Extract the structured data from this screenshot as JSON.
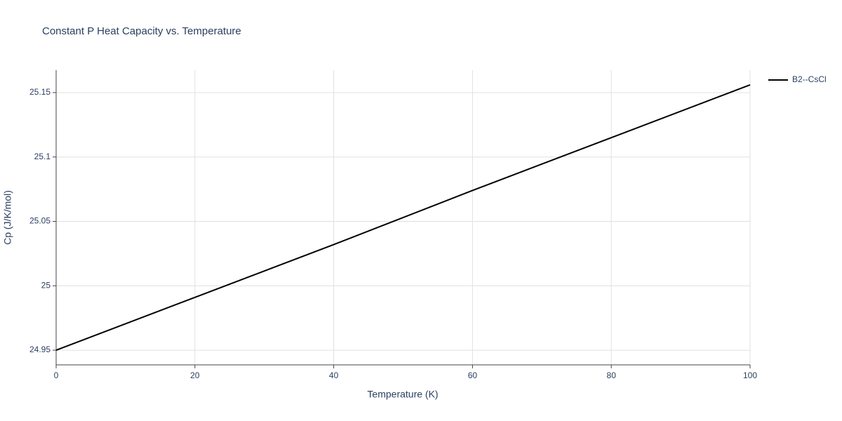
{
  "chart_data": {
    "type": "line",
    "title": "Constant P Heat Capacity vs. Temperature",
    "x_label": "Temperature (K)",
    "y_label": "Cp (J/K/mol)",
    "x": [
      0,
      20,
      40,
      60,
      80,
      100
    ],
    "series": [
      {
        "name": "B2--CsCl",
        "color": "#000000",
        "values": [
          24.95,
          24.991,
          25.032,
          25.074,
          25.115,
          25.156
        ]
      }
    ],
    "xlim": [
      0,
      100
    ],
    "xticks": [
      0,
      20,
      40,
      60,
      80,
      100
    ],
    "ylim": [
      24.9386,
      25.1674
    ],
    "yticks": [
      24.95,
      25,
      25.05,
      25.1,
      25.15
    ],
    "grid": true,
    "legend": "right"
  }
}
